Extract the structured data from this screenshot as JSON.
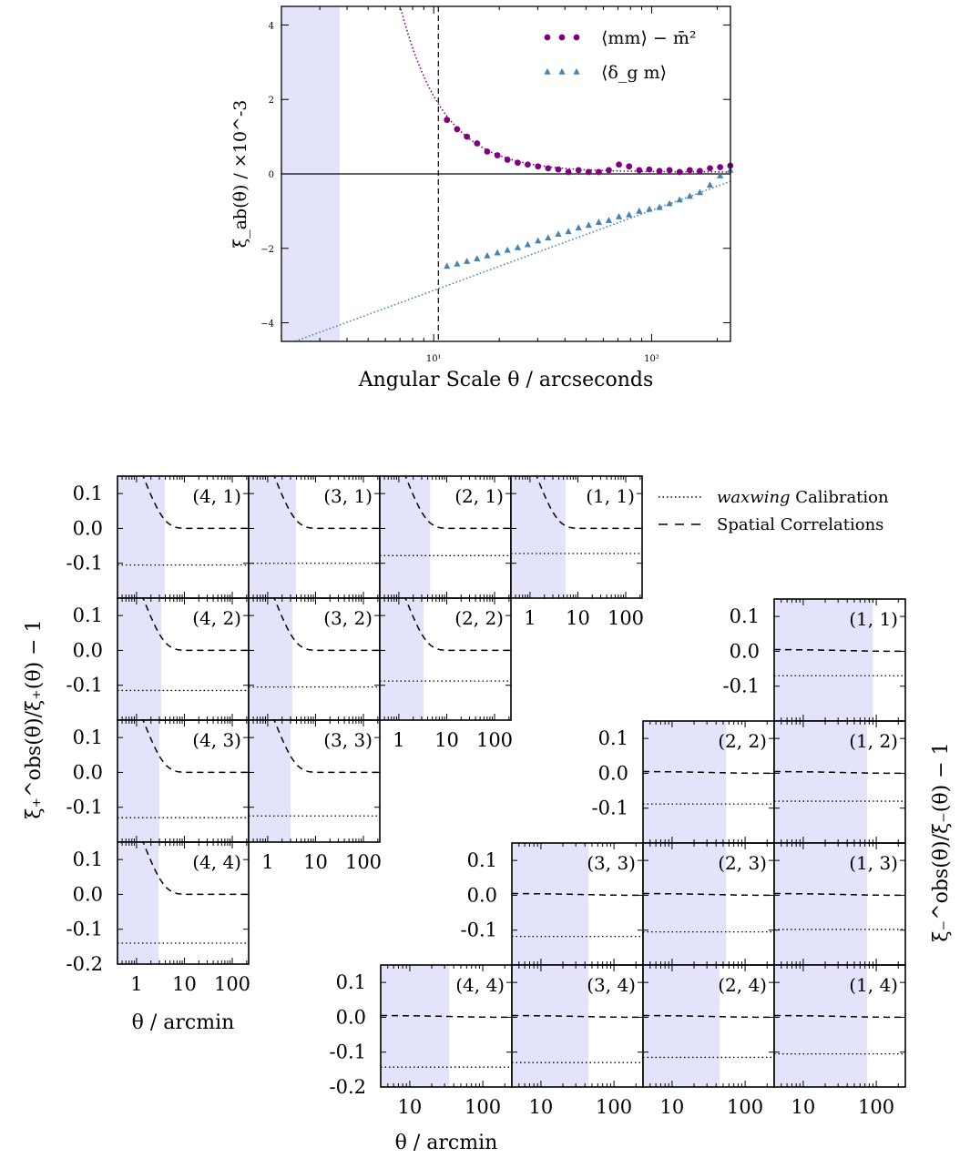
{
  "chart_data": [
    {
      "type": "scatter",
      "xlabel": "Angular Scale θ / arcseconds",
      "ylabel": "ξ_ab(θ) / ×10^-3",
      "x_scale": "log",
      "xlim": [
        2,
        230
      ],
      "ylim": [
        -4.5,
        4.5
      ],
      "yticks": [
        -4,
        -2,
        0,
        2,
        4
      ],
      "ytick_labels": [
        "−4",
        "−2",
        "0",
        "2",
        "4"
      ],
      "xticks": [
        10,
        100
      ],
      "xtick_labels": [
        "10¹",
        "10²"
      ],
      "excluded_region": [
        2,
        3.7
      ],
      "vline_x": 10.5,
      "legend_position": "upper right",
      "series": [
        {
          "name": "⟨mm⟩ − m̄²",
          "color": "#800080",
          "marker": "circle",
          "x": [
            11.5,
            12.8,
            14.2,
            15.8,
            17.6,
            19.6,
            21.8,
            24.3,
            27.0,
            30.1,
            33.5,
            37.3,
            41.5,
            46.2,
            51.4,
            57.2,
            63.6,
            70.8,
            78.8,
            87.7,
            97.6,
            108.6,
            120.8,
            134.4,
            149.6,
            166.5,
            185.3,
            206.2,
            229.5
          ],
          "y": [
            1.45,
            1.2,
            1.0,
            0.82,
            0.6,
            0.5,
            0.38,
            0.3,
            0.25,
            0.2,
            0.15,
            0.12,
            0.05,
            0.1,
            0.05,
            0.05,
            0.1,
            0.25,
            0.2,
            0.1,
            0.12,
            0.08,
            0.1,
            0.05,
            0.1,
            0.08,
            0.15,
            0.18,
            0.22
          ],
          "fit": {
            "amplitude": 1.5,
            "x0": 11.5,
            "exponent": -2.2,
            "offset": 0.05
          }
        },
        {
          "name": "⟨δ_g m⟩",
          "color": "#4682b4",
          "marker": "triangle",
          "x": [
            11.5,
            12.8,
            14.2,
            15.8,
            17.6,
            19.6,
            21.8,
            24.3,
            27.0,
            30.1,
            33.5,
            37.3,
            41.5,
            46.2,
            51.4,
            57.2,
            63.6,
            70.8,
            78.8,
            87.7,
            97.6,
            108.6,
            120.8,
            134.4,
            149.6,
            166.5,
            185.3,
            206.2,
            229.5
          ],
          "y": [
            -2.48,
            -2.42,
            -2.35,
            -2.28,
            -2.2,
            -2.12,
            -2.05,
            -1.98,
            -1.9,
            -1.8,
            -1.72,
            -1.62,
            -1.55,
            -1.45,
            -1.38,
            -1.3,
            -1.25,
            -1.15,
            -1.1,
            -1.0,
            -0.95,
            -0.9,
            -0.8,
            -0.7,
            -0.6,
            -0.5,
            -0.3,
            -0.05,
            0.1
          ],
          "fit": {
            "slope_per_decade": 2.15,
            "y_at_100": -0.98
          }
        }
      ]
    },
    {
      "type": "line",
      "xlabel": "θ / arcmin",
      "ylabel": "ξ₊^obs(θ)/ξ₊(θ) − 1",
      "x_scale": "log",
      "xlim": [
        0.4,
        220
      ],
      "ylim": [
        -0.2,
        0.15
      ],
      "yticks": [
        0.1,
        0.0,
        -0.1,
        -0.2
      ],
      "ytick_labels": [
        "0.1",
        "0.0",
        "-0.1",
        "-0.2"
      ],
      "xticks": [
        1,
        10,
        100
      ],
      "xtick_labels": [
        "1",
        "10",
        "100"
      ],
      "legend": [
        {
          "label_italic": "waxwing",
          "label": " Calibration",
          "style": "dotted"
        },
        {
          "label": "Spatial Correlations",
          "style": "dashed"
        }
      ],
      "panels": [
        {
          "label": "(4, 1)",
          "row": 0,
          "col": 0,
          "shade_to": 3.9,
          "calib": -0.105,
          "spatial_amp": 0.1
        },
        {
          "label": "(3, 1)",
          "row": 0,
          "col": 1,
          "shade_to": 3.9,
          "calib": -0.1,
          "spatial_amp": 0.1
        },
        {
          "label": "(2, 1)",
          "row": 0,
          "col": 2,
          "shade_to": 4.5,
          "calib": -0.078,
          "spatial_amp": 0.1
        },
        {
          "label": "(1, 1)",
          "row": 0,
          "col": 3,
          "shade_to": 5.5,
          "calib": -0.072,
          "spatial_amp": 0.1
        },
        {
          "label": "(4, 2)",
          "row": 1,
          "col": 0,
          "shade_to": 3.3,
          "calib": -0.115,
          "spatial_amp": 0.1
        },
        {
          "label": "(3, 2)",
          "row": 1,
          "col": 1,
          "shade_to": 3.3,
          "calib": -0.105,
          "spatial_amp": 0.1
        },
        {
          "label": "(2, 2)",
          "row": 1,
          "col": 2,
          "shade_to": 3.3,
          "calib": -0.088,
          "spatial_amp": 0.1
        },
        {
          "label": "(4, 3)",
          "row": 2,
          "col": 0,
          "shade_to": 3.0,
          "calib": -0.13,
          "spatial_amp": 0.1
        },
        {
          "label": "(3, 3)",
          "row": 2,
          "col": 1,
          "shade_to": 3.0,
          "calib": -0.125,
          "spatial_amp": 0.1
        },
        {
          "label": "(4, 4)",
          "row": 3,
          "col": 0,
          "shade_to": 2.9,
          "calib": -0.14,
          "spatial_amp": 0.1
        }
      ]
    },
    {
      "type": "line",
      "xlabel": "θ / arcmin",
      "ylabel": "ξ₋^obs(θ)/ξ₋(θ) − 1",
      "x_scale": "log",
      "xlim": [
        4,
        250
      ],
      "ylim": [
        -0.2,
        0.15
      ],
      "yticks": [
        0.1,
        0.0,
        -0.1,
        -0.2
      ],
      "ytick_labels": [
        "0.1",
        "0.0",
        "-0.1",
        "-0.2"
      ],
      "xticks": [
        10,
        100
      ],
      "xtick_labels": [
        "10",
        "100"
      ],
      "panels": [
        {
          "label": "(1, 1)",
          "row": 0,
          "col": 3,
          "shade_to": 90,
          "calib": -0.07,
          "spatial_amp": 0.005
        },
        {
          "label": "(2, 2)",
          "row": 1,
          "col": 2,
          "shade_to": 55,
          "calib": -0.088,
          "spatial_amp": 0.005
        },
        {
          "label": "(1, 2)",
          "row": 1,
          "col": 3,
          "shade_to": 75,
          "calib": -0.08,
          "spatial_amp": 0.005
        },
        {
          "label": "(3, 3)",
          "row": 2,
          "col": 1,
          "shade_to": 45,
          "calib": -0.118,
          "spatial_amp": 0.005
        },
        {
          "label": "(2, 3)",
          "row": 2,
          "col": 2,
          "shade_to": 55,
          "calib": -0.105,
          "spatial_amp": 0.005
        },
        {
          "label": "(1, 3)",
          "row": 2,
          "col": 3,
          "shade_to": 75,
          "calib": -0.098,
          "spatial_amp": 0.005
        },
        {
          "label": "(4, 4)",
          "row": 3,
          "col": 0,
          "shade_to": 35,
          "calib": -0.143,
          "spatial_amp": 0.005
        },
        {
          "label": "(3, 4)",
          "row": 3,
          "col": 1,
          "shade_to": 45,
          "calib": -0.13,
          "spatial_amp": 0.005
        },
        {
          "label": "(2, 4)",
          "row": 3,
          "col": 2,
          "shade_to": 45,
          "calib": -0.115,
          "spatial_amp": 0.005
        },
        {
          "label": "(1, 4)",
          "row": 3,
          "col": 3,
          "shade_to": 75,
          "calib": -0.105,
          "spatial_amp": 0.005
        }
      ]
    }
  ],
  "colors": {
    "shade": "#e3e4fb",
    "purple": "#800080",
    "blue": "#4682b4"
  }
}
